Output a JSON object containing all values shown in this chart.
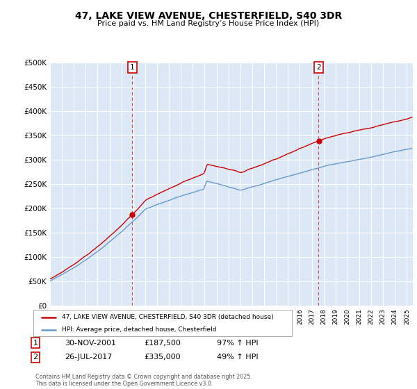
{
  "title": "47, LAKE VIEW AVENUE, CHESTERFIELD, S40 3DR",
  "subtitle": "Price paid vs. HM Land Registry’s House Price Index (HPI)",
  "ylabel_ticks": [
    "£0",
    "£50K",
    "£100K",
    "£150K",
    "£200K",
    "£250K",
    "£300K",
    "£350K",
    "£400K",
    "£450K",
    "£500K"
  ],
  "ytick_values": [
    0,
    50000,
    100000,
    150000,
    200000,
    250000,
    300000,
    350000,
    400000,
    450000,
    500000
  ],
  "ylim": [
    0,
    500000
  ],
  "xlim_start": 1995.0,
  "xlim_end": 2025.5,
  "red_line_color": "#cc0000",
  "blue_line_color": "#6699cc",
  "vline_color": "#dd4444",
  "plot_bg_color": "#dce8f5",
  "marker1_year": 2001.92,
  "marker2_year": 2017.57,
  "sale1_price_val": 187500,
  "sale2_price_val": 335000,
  "sale1_date": "30-NOV-2001",
  "sale1_price": "£187,500",
  "sale1_hpi": "97% ↑ HPI",
  "sale2_date": "26-JUL-2017",
  "sale2_price": "£335,000",
  "sale2_hpi": "49% ↑ HPI",
  "legend_line1": "47, LAKE VIEW AVENUE, CHESTERFIELD, S40 3DR (detached house)",
  "legend_line2": "HPI: Average price, detached house, Chesterfield",
  "copyright": "Contains HM Land Registry data © Crown copyright and database right 2025.\nThis data is licensed under the Open Government Licence v3.0."
}
